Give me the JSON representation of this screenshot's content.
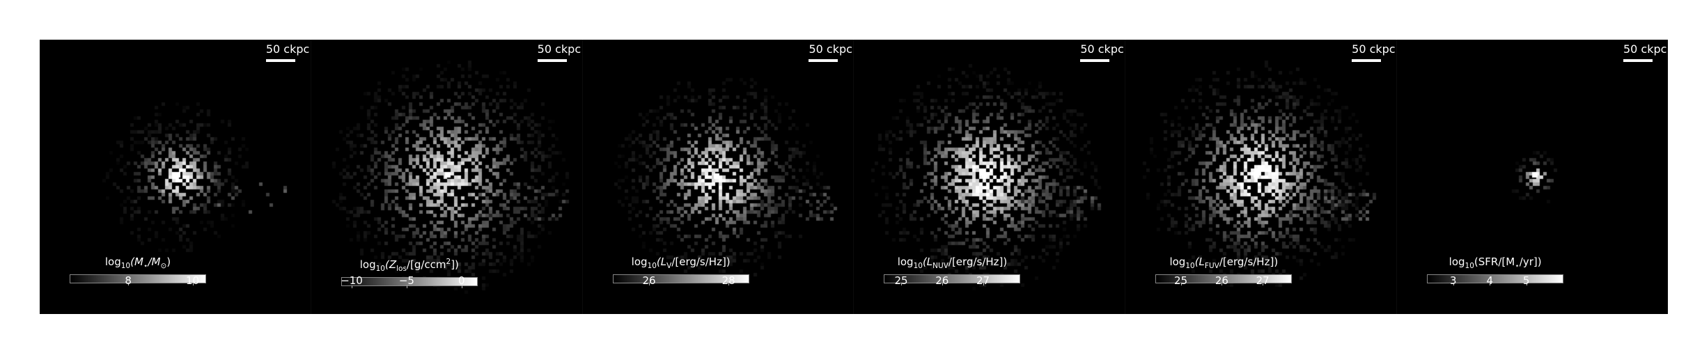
{
  "scale_bar_label": "50 ckpc",
  "panels": [
    {
      "id": "stellar-mass",
      "cbar": {
        "range": [
          6.2,
          10.4
        ],
        "ticks": [
          8,
          10
        ],
        "tick_labels": [
          "8",
          "10"
        ]
      },
      "label_parts": [
        "log",
        "10",
        "(M",
        "⋆",
        "/M",
        "⊙",
        ")"
      ]
    },
    {
      "id": "metallicity",
      "cbar": {
        "range": [
          -10.9,
          1.4
        ],
        "ticks": [
          -10,
          -5,
          0
        ],
        "tick_labels": [
          "−10",
          "−5",
          "0"
        ]
      },
      "label_parts": [
        "log",
        "10",
        "(Z",
        "los",
        "/[g/ccm",
        "2",
        "])"
      ]
    },
    {
      "id": "v-band-luminosity",
      "cbar": {
        "range": [
          25.1,
          28.5
        ],
        "ticks": [
          26,
          28
        ],
        "tick_labels": [
          "26",
          "28"
        ]
      },
      "label_parts": [
        "log",
        "10",
        "(L",
        "V",
        "/[erg/s/Hz])"
      ]
    },
    {
      "id": "nuv-luminosity",
      "cbar": {
        "range": [
          24.6,
          27.9
        ],
        "ticks": [
          25,
          26,
          27
        ],
        "tick_labels": [
          "25",
          "26",
          "27"
        ]
      },
      "label_parts": [
        "log",
        "10",
        "(L",
        "NUV",
        "/[erg/s/Hz])"
      ]
    },
    {
      "id": "fuv-luminosity",
      "cbar": {
        "range": [
          24.4,
          27.7
        ],
        "ticks": [
          25,
          26,
          27
        ],
        "tick_labels": [
          "25",
          "26",
          "27"
        ]
      },
      "label_parts": [
        "log",
        "10",
        "(L",
        "FUV",
        "/[erg/s/Hz])"
      ]
    },
    {
      "id": "star-formation-rate",
      "cbar": {
        "range": [
          2.3,
          6.0
        ],
        "ticks": [
          3,
          4,
          5
        ],
        "tick_labels": [
          "3",
          "4",
          "5"
        ]
      },
      "label_parts": [
        "log",
        "10",
        "(SFR/[M",
        "⋆",
        "/yr])"
      ]
    }
  ]
}
